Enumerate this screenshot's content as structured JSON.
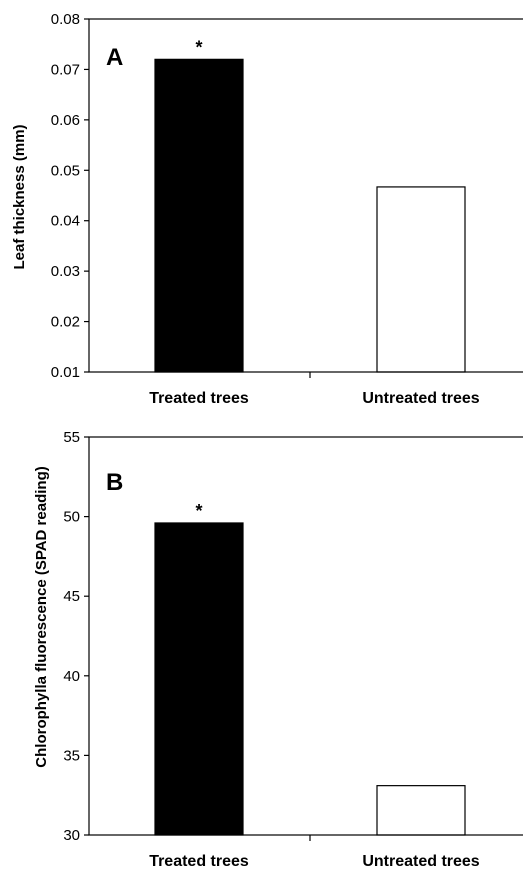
{
  "chart_data": [
    {
      "type": "bar",
      "panel_label": "A",
      "ylabel": "Leaf thickness (mm)",
      "xlabel": "",
      "categories": [
        "Treated trees",
        "Untreated trees"
      ],
      "values": [
        0.072,
        0.0467
      ],
      "bar_colors": [
        "#000000",
        "#ffffff"
      ],
      "annotations": [
        "*",
        ""
      ],
      "ylim": [
        0.01,
        0.08
      ],
      "yticks": [
        "0.01",
        "0.02",
        "0.03",
        "0.04",
        "0.05",
        "0.06",
        "0.07",
        "0.08"
      ],
      "grid": false,
      "legend": "none"
    },
    {
      "type": "bar",
      "panel_label": "B",
      "ylabel": "Chlorophylla fluorescence (SPAD reading)",
      "xlabel": "",
      "categories": [
        "Treated trees",
        "Untreated trees"
      ],
      "values": [
        49.6,
        33.1
      ],
      "bar_colors": [
        "#000000",
        "#ffffff"
      ],
      "annotations": [
        "*",
        ""
      ],
      "ylim": [
        30,
        55
      ],
      "yticks": [
        "30",
        "35",
        "40",
        "45",
        "50",
        "55"
      ],
      "grid": false,
      "legend": "none"
    }
  ]
}
